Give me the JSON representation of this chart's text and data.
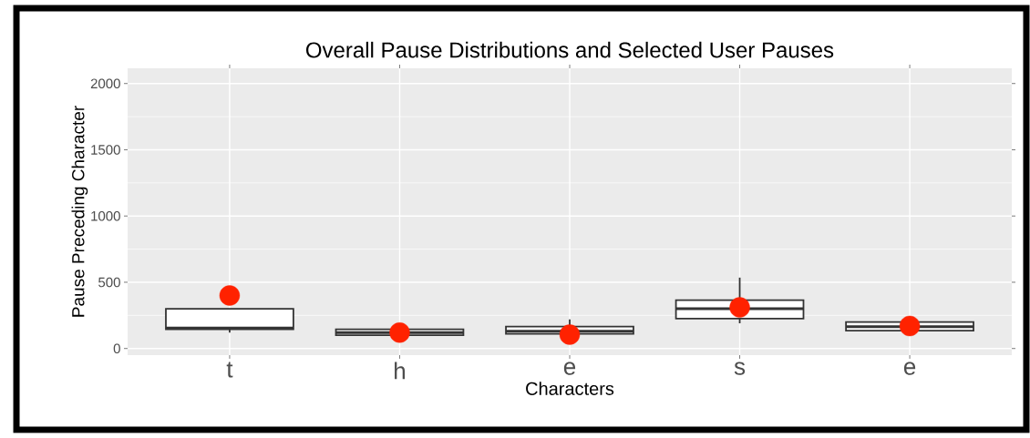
{
  "chart_data": {
    "type": "box",
    "title": "Overall Pause Distributions and Selected User Pauses",
    "xlabel": "Characters",
    "ylabel": "Pause Preceding Character",
    "categories": [
      "t",
      "h",
      "e",
      "s",
      "e"
    ],
    "boxes": [
      {
        "low": 120,
        "q1": 145,
        "median": 155,
        "q3": 300,
        "high": 300
      },
      {
        "low": 100,
        "q1": 100,
        "median": 120,
        "q3": 145,
        "high": 145
      },
      {
        "low": 110,
        "q1": 110,
        "median": 130,
        "q3": 165,
        "high": 220
      },
      {
        "low": 190,
        "q1": 225,
        "median": 300,
        "q3": 365,
        "high": 535
      },
      {
        "low": 135,
        "q1": 135,
        "median": 165,
        "q3": 200,
        "high": 200
      }
    ],
    "color": "#333333",
    "series": [
      {
        "type": "scatter",
        "values": [
          400,
          120,
          105,
          310,
          170
        ],
        "color": "#ff2200",
        "marker": "circle"
      }
    ],
    "ylim": [
      -50,
      2115
    ],
    "yticks": [
      0,
      500,
      1000,
      1500,
      2000
    ],
    "grid": true
  }
}
